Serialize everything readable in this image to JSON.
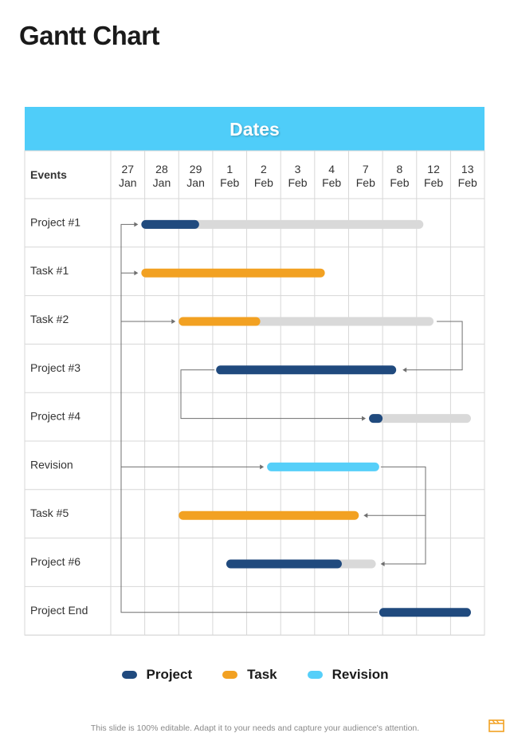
{
  "page": {
    "title": "Gantt Chart",
    "footer": "This slide is 100% editable. Adapt it to your needs and capture your audience's attention."
  },
  "colors": {
    "header_bg": "#4fcdf9",
    "project": "#204a7e",
    "task": "#f2a122",
    "revision": "#56cff9",
    "remaining": "#d9d9d9",
    "grid": "#d7d7d7",
    "connector": "#6f6f6f"
  },
  "table": {
    "header": "Dates",
    "events_label": "Events",
    "dates": [
      {
        "day": "27",
        "month": "Jan"
      },
      {
        "day": "28",
        "month": "Jan"
      },
      {
        "day": "29",
        "month": "Jan"
      },
      {
        "day": "1",
        "month": "Feb"
      },
      {
        "day": "2",
        "month": "Feb"
      },
      {
        "day": "3",
        "month": "Feb"
      },
      {
        "day": "4",
        "month": "Feb"
      },
      {
        "day": "7",
        "month": "Feb"
      },
      {
        "day": "8",
        "month": "Feb"
      },
      {
        "day": "12",
        "month": "Feb"
      },
      {
        "day": "13",
        "month": "Feb"
      }
    ],
    "rows": [
      {
        "label": "Project #1",
        "type": "project",
        "start": 0.9,
        "end": 2.6,
        "total_end": 9.2
      },
      {
        "label": "Task #1",
        "type": "task",
        "start": 0.9,
        "end": 6.3
      },
      {
        "label": "Task #2",
        "type": "task",
        "start": 2.0,
        "end": 4.4,
        "total_end": 9.5
      },
      {
        "label": "Project #3",
        "type": "project",
        "start": 3.1,
        "end": 8.4
      },
      {
        "label": "Project #4",
        "type": "project",
        "start": 7.6,
        "end": 8.0,
        "total_end": 10.6
      },
      {
        "label": "Revision",
        "type": "revision",
        "start": 4.6,
        "end": 7.9
      },
      {
        "label": "Task #5",
        "type": "task",
        "start": 2.0,
        "end": 7.3
      },
      {
        "label": "Project #6",
        "type": "project",
        "start": 3.4,
        "end": 6.8,
        "total_end": 7.8
      },
      {
        "label": "Project End",
        "type": "project",
        "start": 7.9,
        "end": 10.6
      }
    ]
  },
  "legend": [
    {
      "label": "Project",
      "color": "#204a7e"
    },
    {
      "label": "Task",
      "color": "#f2a122"
    },
    {
      "label": "Revision",
      "color": "#56cff9"
    }
  ],
  "icons": {
    "corner": "presentation-board-icon"
  }
}
